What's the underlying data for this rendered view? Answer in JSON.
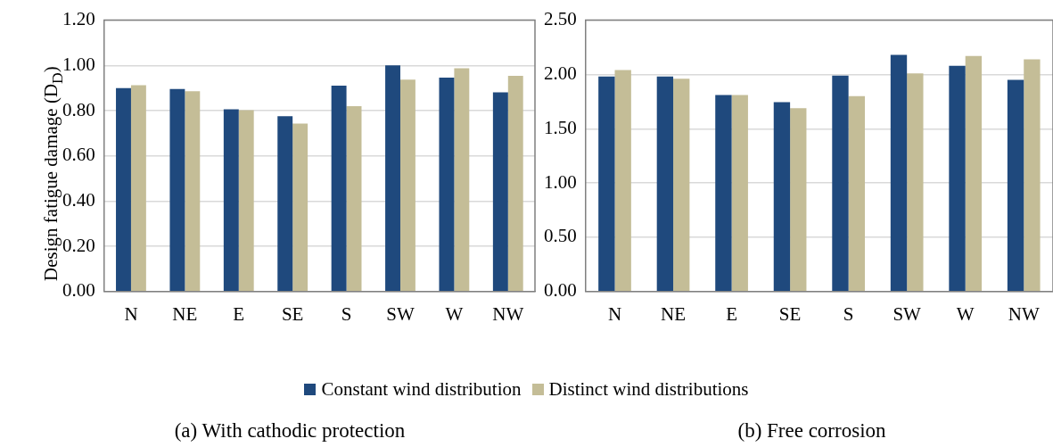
{
  "chart_data": [
    {
      "type": "bar",
      "title": "(a) With cathodic protection",
      "ylabel": "Design fatigue damage (D$_{D}$)",
      "categories": [
        "N",
        "NE",
        "E",
        "SE",
        "S",
        "SW",
        "W",
        "NW"
      ],
      "series": [
        {
          "name": "Constant wind distribution",
          "color": "#1f497d",
          "values": [
            0.9,
            0.896,
            0.806,
            0.775,
            0.91,
            1.0,
            0.946,
            0.881
          ]
        },
        {
          "name": "Distinct wind distributions",
          "color": "#c4bd97",
          "values": [
            0.912,
            0.886,
            0.802,
            0.743,
            0.82,
            0.937,
            0.987,
            0.954
          ]
        }
      ],
      "ylim": [
        0,
        1.2
      ],
      "yticks": [
        {
          "value": 0,
          "label": "0.00"
        },
        {
          "value": 0.2,
          "label": "0.20"
        },
        {
          "value": 0.4,
          "label": "0.40"
        },
        {
          "value": 0.6,
          "label": "0.60"
        },
        {
          "value": 0.8,
          "label": "0.80"
        },
        {
          "value": 1.0,
          "label": "1.00"
        },
        {
          "value": 1.2,
          "label": "1.20"
        }
      ],
      "grid": "y",
      "legend": "bottom"
    },
    {
      "type": "bar",
      "title": "(b) Free corrosion",
      "categories": [
        "N",
        "NE",
        "E",
        "SE",
        "S",
        "SW",
        "W",
        "NW"
      ],
      "series": [
        {
          "color": "#1f497d",
          "values": [
            1.98,
            1.98,
            1.81,
            1.745,
            1.99,
            2.18,
            2.08,
            1.95
          ]
        },
        {
          "color": "#c4bd97",
          "values": [
            2.04,
            1.96,
            1.81,
            1.69,
            1.8,
            2.01,
            2.17,
            2.14
          ]
        }
      ],
      "ylim": [
        0,
        2.5
      ],
      "yticks": [
        {
          "value": 0,
          "label": "0.00"
        },
        {
          "value": 0.5,
          "label": "0.50"
        },
        {
          "value": 1.0,
          "label": "1.00"
        },
        {
          "value": 1.5,
          "label": "1.50"
        },
        {
          "value": 2.0,
          "label": "2.00"
        },
        {
          "value": 2.5,
          "label": "2.50"
        }
      ],
      "grid": "y"
    }
  ]
}
